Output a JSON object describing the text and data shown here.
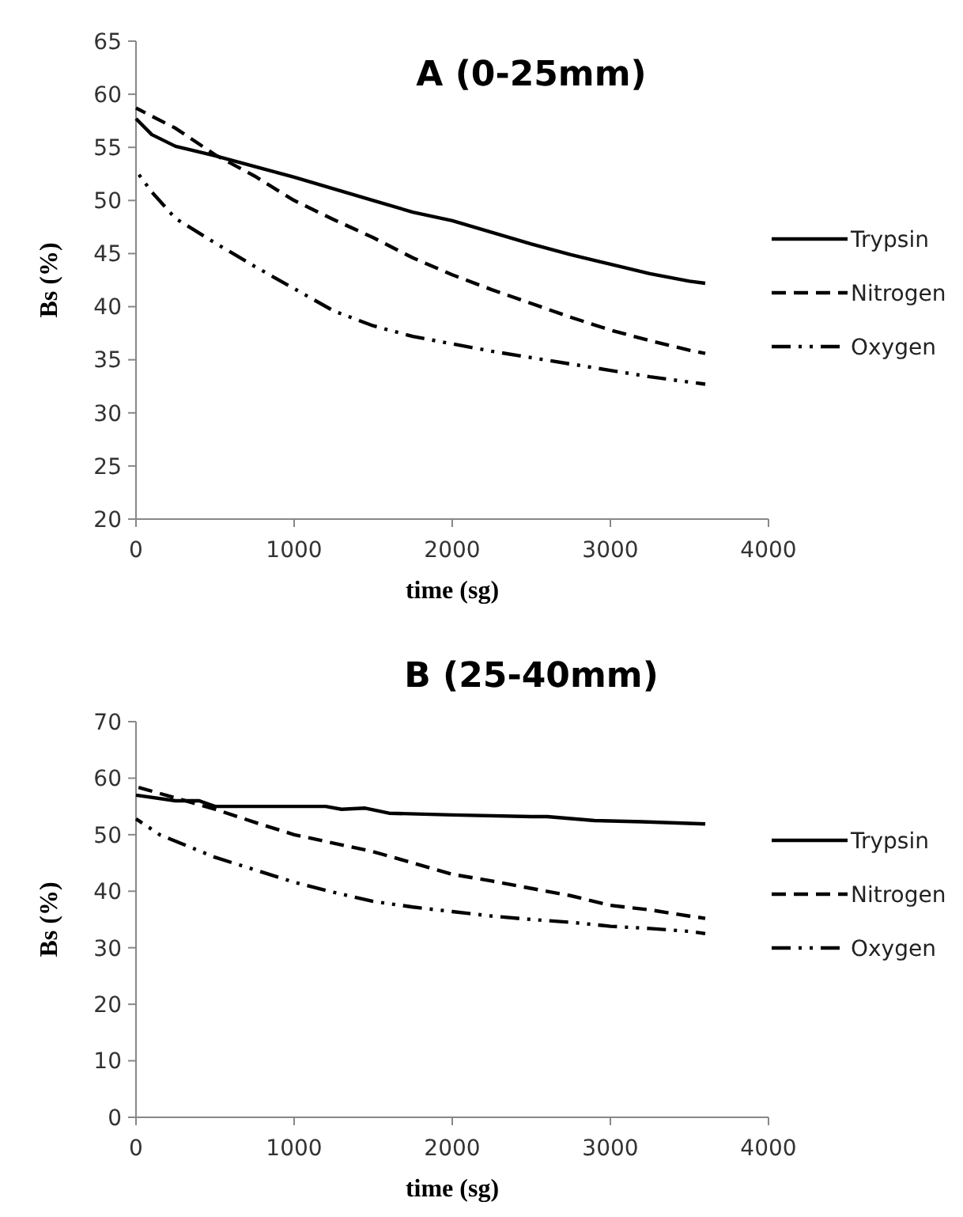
{
  "chart_data": [
    {
      "type": "line",
      "title": "A (0-25mm)",
      "xlabel": "time (sg)",
      "ylabel": "Bs (%)",
      "xlim": [
        0,
        4000
      ],
      "xticks": [
        0,
        1000,
        2000,
        3000,
        4000
      ],
      "ylim": [
        20,
        65
      ],
      "yticks": [
        20,
        25,
        30,
        35,
        40,
        45,
        50,
        55,
        60,
        65
      ],
      "grid": false,
      "legend": "right",
      "marker": "none",
      "series": [
        {
          "name": "Trypsin",
          "color": "#000000",
          "line_style": "solid",
          "x": [
            0,
            100,
            250,
            500,
            750,
            1000,
            1250,
            1500,
            1750,
            2000,
            2250,
            2500,
            2750,
            3000,
            3250,
            3500,
            3600
          ],
          "values": [
            57.7,
            56.2,
            55.1,
            54.2,
            53.2,
            52.2,
            51.1,
            50.0,
            48.9,
            48.1,
            47.0,
            45.9,
            44.9,
            44.0,
            43.1,
            42.4,
            42.2
          ]
        },
        {
          "name": "Nitrogen",
          "color": "#000000",
          "line_style": "dashed",
          "x": [
            0,
            250,
            500,
            750,
            1000,
            1250,
            1500,
            1750,
            2000,
            2250,
            2500,
            2750,
            3000,
            3250,
            3500,
            3600
          ],
          "values": [
            58.7,
            56.8,
            54.3,
            52.3,
            50.0,
            48.2,
            46.5,
            44.6,
            43.0,
            41.6,
            40.3,
            39.0,
            37.8,
            36.8,
            35.9,
            35.6
          ]
        },
        {
          "name": "Oxygen",
          "color": "#000000",
          "line_style": "dashdot",
          "x": [
            0,
            100,
            250,
            500,
            750,
            1000,
            1250,
            1500,
            1750,
            2000,
            2250,
            2500,
            2750,
            3000,
            3250,
            3500,
            3600
          ],
          "values": [
            52.8,
            50.8,
            48.3,
            46.0,
            43.8,
            41.7,
            39.6,
            38.2,
            37.2,
            36.5,
            35.8,
            35.2,
            34.6,
            34.0,
            33.4,
            32.9,
            32.7
          ]
        }
      ]
    },
    {
      "type": "line",
      "title": "B (25-40mm)",
      "xlabel": "time (sg)",
      "ylabel": "Bs (%)",
      "xlim": [
        0,
        4000
      ],
      "xticks": [
        0,
        1000,
        2000,
        3000,
        4000
      ],
      "ylim": [
        0,
        70
      ],
      "yticks": [
        0,
        10,
        20,
        30,
        40,
        50,
        60,
        70
      ],
      "grid": false,
      "legend": "right",
      "marker": "none",
      "series": [
        {
          "name": "Trypsin",
          "color": "#000000",
          "line_style": "solid",
          "x": [
            0,
            250,
            400,
            500,
            1200,
            1300,
            1450,
            1600,
            2000,
            2500,
            2600,
            2900,
            3200,
            3600
          ],
          "values": [
            57,
            56,
            56,
            55,
            55,
            54.5,
            54.7,
            53.8,
            53.5,
            53.2,
            53.2,
            52.5,
            52.3,
            51.9
          ]
        },
        {
          "name": "Nitrogen",
          "color": "#000000",
          "line_style": "dashed",
          "x": [
            0,
            250,
            500,
            750,
            1000,
            1250,
            1500,
            1750,
            2000,
            2250,
            2500,
            2750,
            3000,
            3250,
            3500,
            3600
          ],
          "values": [
            58.5,
            56.5,
            54.5,
            52.2,
            50,
            48.5,
            47,
            45,
            43,
            41.8,
            40.5,
            39.2,
            37.5,
            36.7,
            35.6,
            35.2
          ]
        },
        {
          "name": "Oxygen",
          "color": "#000000",
          "line_style": "dashdot",
          "x": [
            0,
            150,
            500,
            750,
            1000,
            1250,
            1500,
            1750,
            2000,
            2250,
            2500,
            2750,
            3000,
            3250,
            3500,
            3600
          ],
          "values": [
            52.8,
            50,
            46,
            43.8,
            41.6,
            39.8,
            38.2,
            37.2,
            36.4,
            35.6,
            35,
            34.5,
            33.8,
            33.4,
            32.9,
            32.5
          ]
        }
      ]
    }
  ]
}
